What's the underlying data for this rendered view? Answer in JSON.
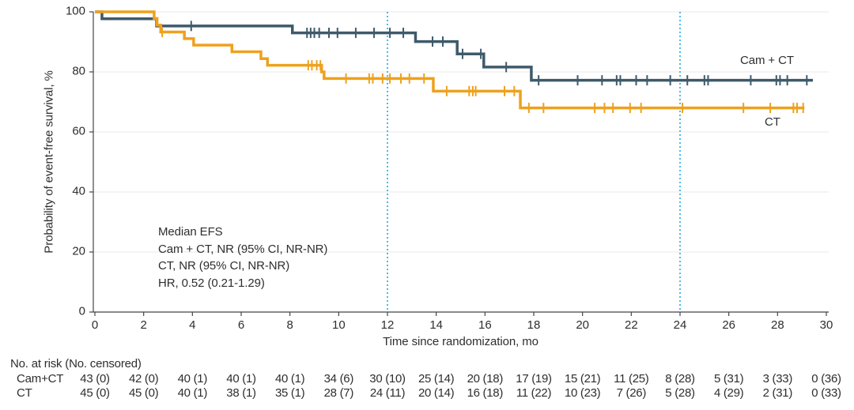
{
  "figure": {
    "y_axis_title": "Probability of event-free survival, %",
    "x_axis_title": "Time since randomization, mo",
    "annotation": {
      "lines": [
        "Median EFS",
        "Cam + CT, NR (95% CI, NR-NR)",
        "CT, NR (95% CI, NR-NR)",
        "HR, 0.52 (0.21-1.29)"
      ]
    },
    "at_risk": {
      "header": "No. at risk (No. censored)",
      "times": [
        0,
        2,
        4,
        6,
        8,
        10,
        12,
        14,
        16,
        18,
        20,
        22,
        24,
        26,
        28,
        30
      ],
      "rows": [
        {
          "label": "Cam+CT",
          "values": [
            "43 (0)",
            "42 (0)",
            "40 (1)",
            "40 (1)",
            "40 (1)",
            "34 (6)",
            "30 (10)",
            "25 (14)",
            "20 (18)",
            "17 (19)",
            "15 (21)",
            "11 (25)",
            "8 (28)",
            "5 (31)",
            "3 (33)",
            "0 (36)"
          ]
        },
        {
          "label": "CT",
          "values": [
            "45 (0)",
            "45 (0)",
            "40 (1)",
            "38 (1)",
            "35 (1)",
            "28 (7)",
            "24 (11)",
            "20 (14)",
            "16 (18)",
            "11 (22)",
            "10 (23)",
            "7 (26)",
            "5 (28)",
            "4 (29)",
            "2 (31)",
            "0 (33)"
          ]
        }
      ]
    }
  },
  "chart_data": {
    "type": "line",
    "subtype": "kaplan-meier-step",
    "title": "",
    "xlabel": "Time since randomization, mo",
    "ylabel": "Probability of event-free survival, %",
    "xlim": [
      0,
      30
    ],
    "ylim": [
      0,
      100
    ],
    "xticks": [
      0,
      2,
      4,
      6,
      8,
      10,
      12,
      14,
      16,
      18,
      20,
      22,
      24,
      26,
      28,
      30
    ],
    "yticks": [
      0,
      20,
      40,
      60,
      80,
      100
    ],
    "grid": "horizontal",
    "grid_color": "#e8e8e8",
    "axis_color": "#454545",
    "reference_lines": [
      {
        "x": 12,
        "style": "dotted",
        "color": "#4bbce8"
      },
      {
        "x": 24,
        "style": "dotted",
        "color": "#4bbce8"
      }
    ],
    "series": [
      {
        "name": "Cam + CT",
        "color": "#3e5a6b",
        "steps": [
          [
            0,
            100
          ],
          [
            0.29,
            97.7
          ],
          [
            2.53,
            95.3
          ],
          [
            8.1,
            93.0
          ],
          [
            13.15,
            90.1
          ],
          [
            14.86,
            86.0
          ],
          [
            15.95,
            81.6
          ],
          [
            17.9,
            77.2
          ]
        ],
        "end_time": 29.45,
        "censor_times": [
          3.95,
          8.7,
          8.85,
          9.0,
          9.2,
          9.6,
          9.95,
          10.7,
          11.45,
          12.1,
          12.65,
          13.85,
          14.27,
          15.08,
          15.83,
          16.87,
          18.2,
          19.8,
          20.8,
          21.4,
          21.55,
          22.2,
          22.65,
          23.6,
          24.3,
          25.0,
          25.15,
          26.9,
          27.95,
          28.1,
          28.4,
          29.2
        ]
      },
      {
        "name": "CT",
        "color": "#eea11e",
        "steps": [
          [
            0,
            100
          ],
          [
            2.43,
            97.8
          ],
          [
            2.55,
            95.6
          ],
          [
            2.7,
            93.3
          ],
          [
            3.67,
            91.1
          ],
          [
            4.05,
            88.9
          ],
          [
            5.62,
            86.7
          ],
          [
            6.81,
            84.4
          ],
          [
            7.08,
            82.2
          ],
          [
            9.3,
            80.0
          ],
          [
            9.4,
            77.8
          ],
          [
            13.88,
            73.6
          ],
          [
            17.45,
            68.0
          ]
        ],
        "end_time": 29.1,
        "censor_times": [
          2.76,
          8.75,
          8.9,
          9.1,
          9.25,
          10.3,
          11.25,
          11.4,
          11.8,
          12.1,
          12.55,
          12.9,
          13.5,
          14.43,
          15.35,
          15.5,
          15.62,
          16.8,
          17.2,
          17.8,
          18.4,
          20.5,
          20.9,
          21.25,
          21.95,
          22.4,
          24.1,
          26.6,
          27.7,
          28.65,
          28.8,
          29.05
        ]
      }
    ]
  }
}
